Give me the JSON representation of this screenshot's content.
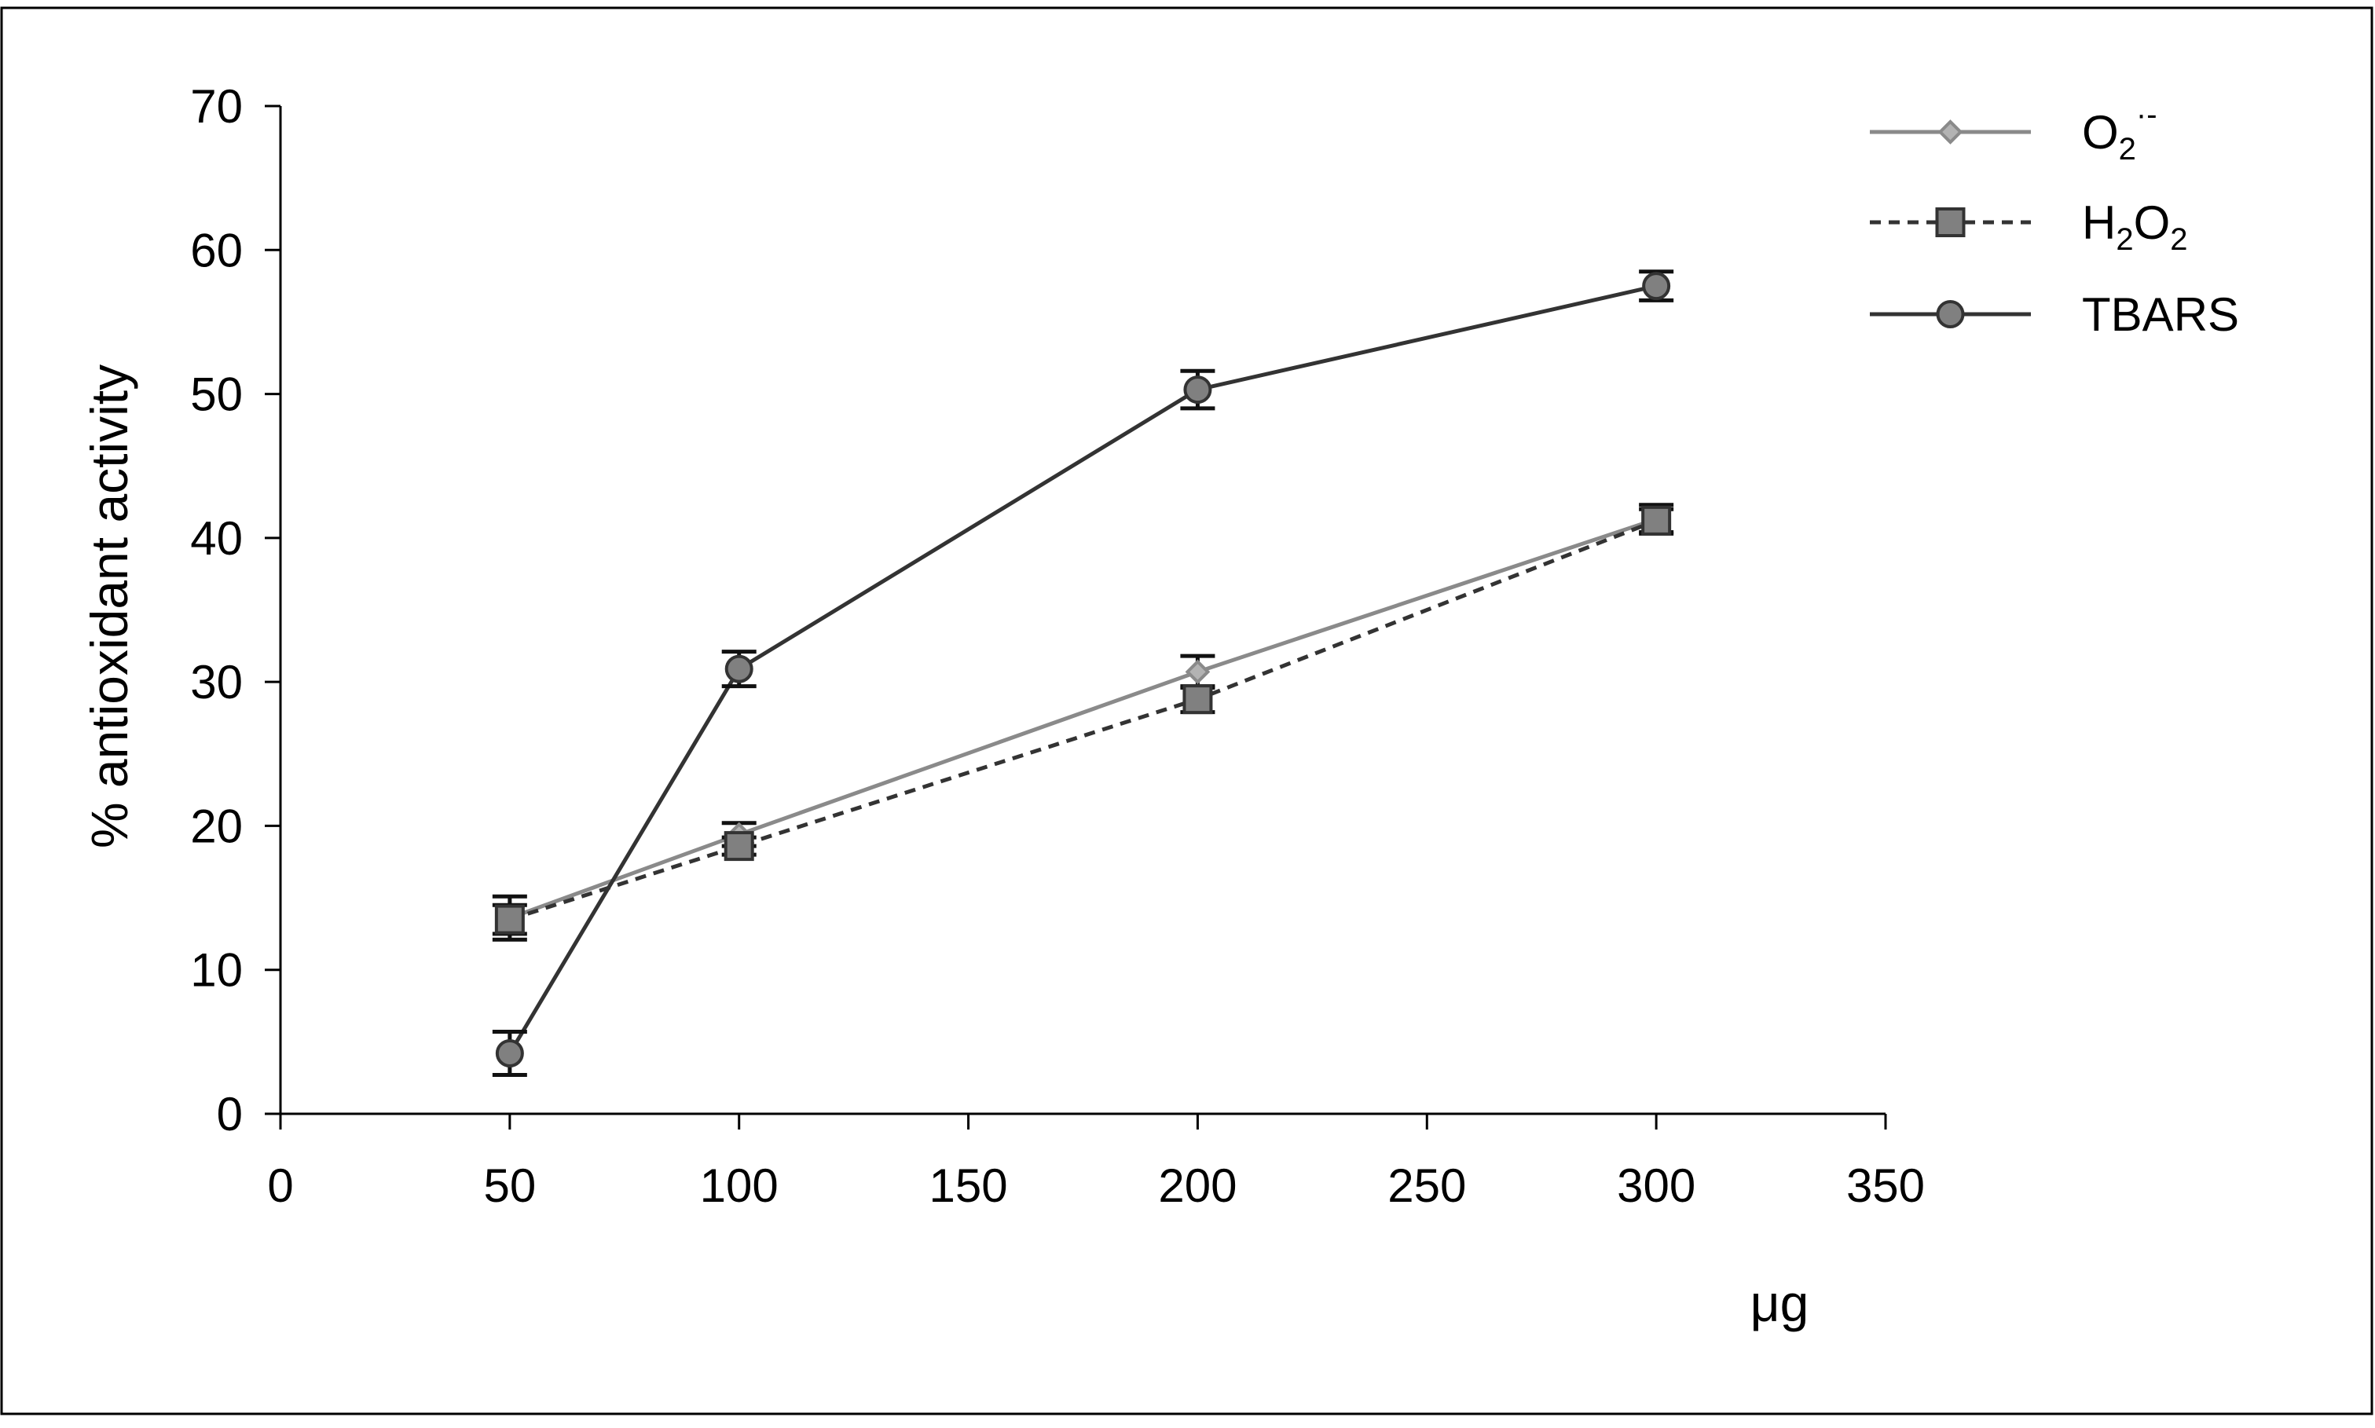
{
  "chart_data": {
    "type": "line",
    "xlabel": "μg",
    "ylabel": "% antioxidant activity",
    "xlim": [
      0,
      350
    ],
    "ylim": [
      0,
      70
    ],
    "x_ticks": [
      0,
      50,
      100,
      150,
      200,
      250,
      300,
      350
    ],
    "y_ticks": [
      0,
      10,
      20,
      30,
      40,
      50,
      60,
      70
    ],
    "grid": false,
    "legend_position": "top-right",
    "x": [
      50,
      100,
      200,
      300
    ],
    "series": [
      {
        "name": "O2·-",
        "name_main": "O",
        "name_sub": "2",
        "name_sup": "·-",
        "values": [
          13.6,
          19.4,
          30.7,
          41.3
        ],
        "error": [
          1.5,
          0.8,
          1.1,
          1.0
        ],
        "color": "#8a8a8a",
        "line_style": "solid",
        "marker": "diamond"
      },
      {
        "name": "H2O2",
        "name_parts": [
          "H",
          "2",
          "O",
          "2"
        ],
        "values": [
          13.5,
          18.6,
          28.8,
          41.2
        ],
        "error": [
          1.0,
          0.6,
          0.9,
          0.8
        ],
        "color": "#333333",
        "line_style": "dashed",
        "marker": "square"
      },
      {
        "name": "TBARS",
        "values": [
          4.2,
          30.9,
          50.3,
          57.5
        ],
        "error": [
          1.5,
          1.2,
          1.3,
          1.0
        ],
        "color": "#333333",
        "line_style": "solid",
        "marker": "circle"
      }
    ]
  }
}
